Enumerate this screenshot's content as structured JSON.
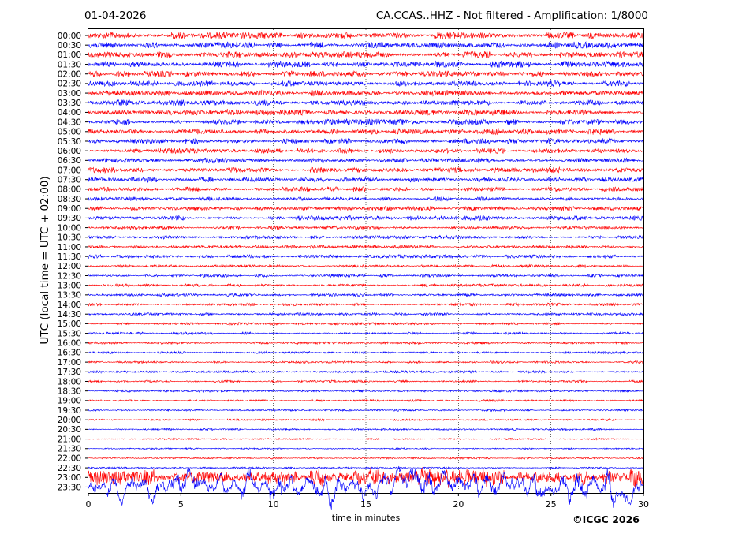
{
  "header": {
    "date": "01-04-2026",
    "title": "CA.CCAS..HHZ - Not filtered - Amplification: 1/8000"
  },
  "footer": {
    "copyright": "©ICGC 2026"
  },
  "chart_data": {
    "type": "line",
    "title": "CA.CCAS..HHZ - Not filtered - Amplification: 1/8000",
    "xlabel": "time in minutes",
    "ylabel": "UTC (local time = UTC + 02:00)",
    "xlim": [
      0,
      30
    ],
    "x_ticks": [
      0,
      5,
      10,
      15,
      20,
      25,
      30
    ],
    "grid": "vertical dotted at 5-minute ticks",
    "row_labels": [
      "00:00",
      "00:30",
      "01:00",
      "01:30",
      "02:00",
      "02:30",
      "03:00",
      "03:30",
      "04:00",
      "04:30",
      "05:00",
      "05:30",
      "06:00",
      "06:30",
      "07:00",
      "07:30",
      "08:00",
      "08:30",
      "09:00",
      "09:30",
      "10:00",
      "10:30",
      "11:00",
      "11:30",
      "12:00",
      "12:30",
      "13:00",
      "13:30",
      "14:00",
      "14:30",
      "15:00",
      "15:30",
      "16:00",
      "16:30",
      "17:00",
      "17:30",
      "18:00",
      "18:30",
      "19:00",
      "19:30",
      "20:00",
      "20:30",
      "21:00",
      "21:30",
      "22:00",
      "22:30",
      "23:00",
      "23:30"
    ],
    "trace_colors": [
      "#ff0000",
      "#0000ff"
    ],
    "trace_pattern": "alternating red / blue rows",
    "relative_amplitude": [
      0.55,
      0.55,
      0.55,
      0.55,
      0.5,
      0.5,
      0.5,
      0.5,
      0.5,
      0.5,
      0.5,
      0.5,
      0.45,
      0.45,
      0.45,
      0.45,
      0.4,
      0.4,
      0.4,
      0.4,
      0.3,
      0.3,
      0.3,
      0.3,
      0.25,
      0.25,
      0.25,
      0.25,
      0.25,
      0.25,
      0.22,
      0.22,
      0.22,
      0.22,
      0.2,
      0.2,
      0.2,
      0.2,
      0.18,
      0.18,
      0.18,
      0.18,
      0.15,
      0.15,
      0.15,
      0.15,
      1.3,
      2.2
    ]
  }
}
